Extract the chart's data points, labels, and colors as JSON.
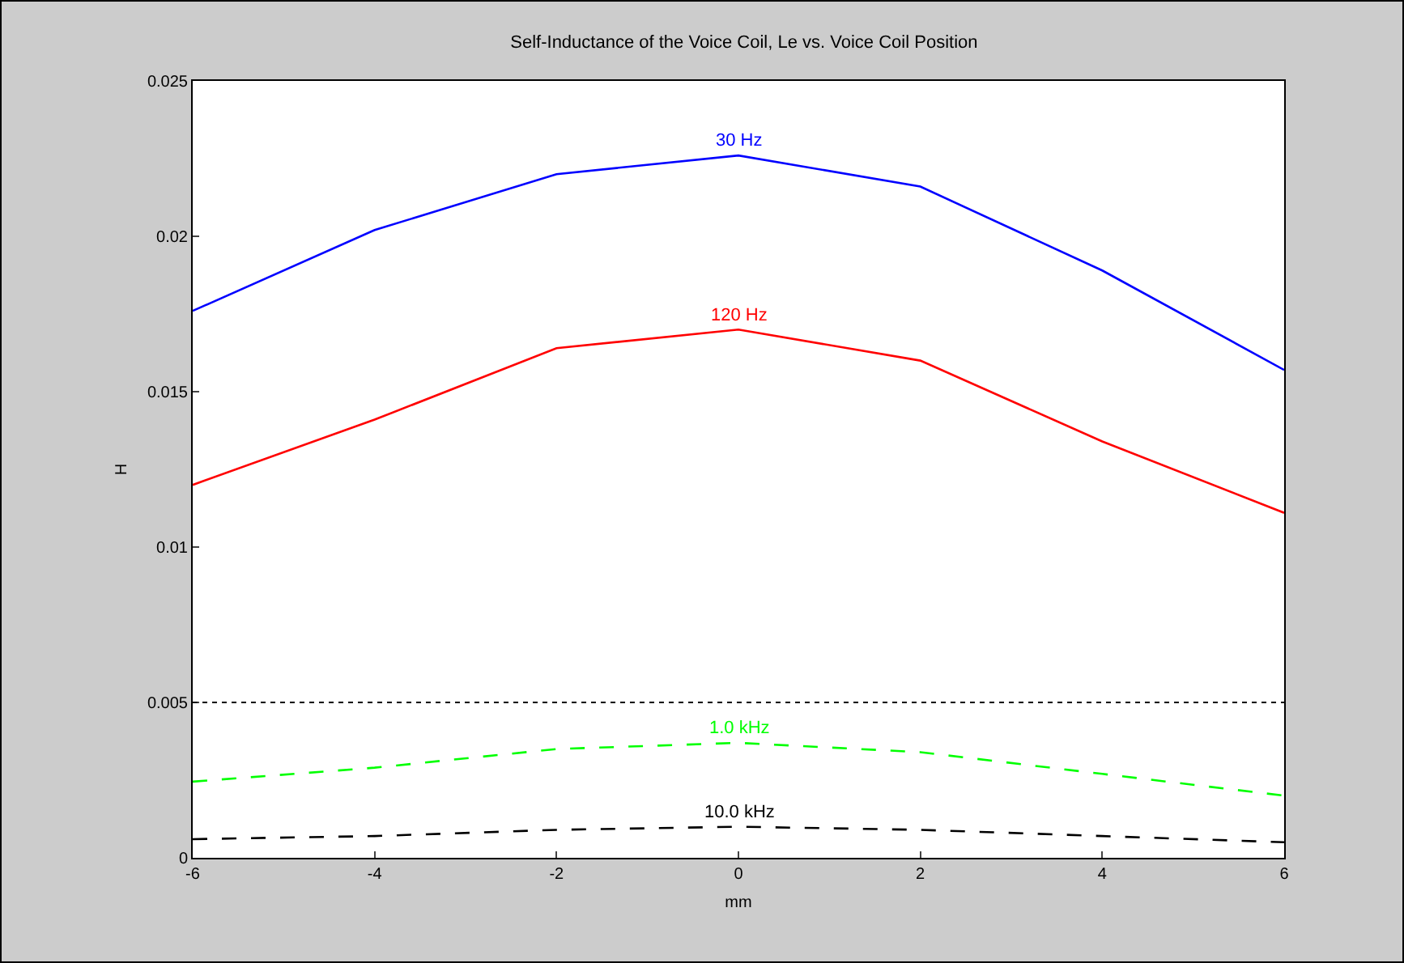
{
  "chart_data": {
    "type": "line",
    "title": "Self-Inductance of the Voice Coil, Le vs. Voice Coil Position",
    "xlabel": "mm",
    "ylabel": "H",
    "x": [
      -6,
      -4,
      -2,
      0,
      2,
      4,
      6
    ],
    "series": [
      {
        "name": "30 Hz",
        "color": "#0000ff",
        "line_style": "solid",
        "values": [
          0.0176,
          0.0202,
          0.022,
          0.0226,
          0.0216,
          0.0189,
          0.0157
        ]
      },
      {
        "name": "120 Hz",
        "color": "#ff0000",
        "line_style": "solid",
        "values": [
          0.012,
          0.0141,
          0.0164,
          0.017,
          0.016,
          0.0134,
          0.0111
        ]
      },
      {
        "name": "1.0 kHz",
        "color": "#00ff00",
        "line_style": "dashed",
        "values": [
          0.00245,
          0.0029,
          0.0035,
          0.0037,
          0.0034,
          0.0027,
          0.002
        ]
      },
      {
        "name": "10.0 kHz",
        "color": "#000000",
        "line_style": "dashed",
        "values": [
          0.0006,
          0.0007,
          0.0009,
          0.001,
          0.0009,
          0.0007,
          0.0005
        ]
      }
    ],
    "xlim": [
      -6,
      6
    ],
    "xticks": [
      -6,
      -4,
      -2,
      0,
      2,
      4,
      6
    ],
    "ylim": [
      0,
      0.025
    ],
    "yticks": [
      0,
      0.005,
      0.01,
      0.015,
      0.02,
      0.025
    ],
    "ref_lines": [
      {
        "axis": "y",
        "value": 0.005,
        "color": "#000000",
        "line_style": "dotted"
      }
    ],
    "grid": false,
    "legend": false,
    "marker": "none"
  }
}
